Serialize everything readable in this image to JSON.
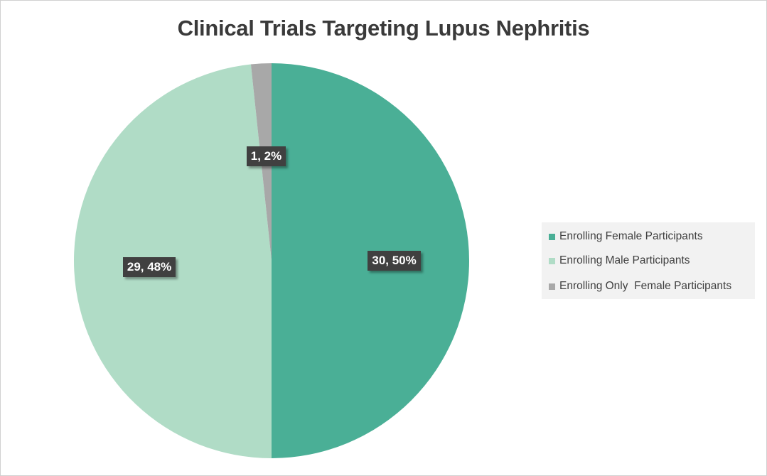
{
  "chart_data": {
    "type": "pie",
    "title": "Clinical Trials Targeting Lupus Nephritis",
    "slices": [
      {
        "label": "Enrolling Female Participants",
        "value": 30,
        "percent": 50,
        "color": "#4aaf96",
        "data_label": "30, 50%"
      },
      {
        "label": "Enrolling Male Participants",
        "value": 29,
        "percent": 48,
        "color": "#b0dcc6",
        "data_label": "29, 48%"
      },
      {
        "label": "Enrolling Only  Female Participants",
        "value": 1,
        "percent": 2,
        "color": "#a8a8a8",
        "data_label": "1, 2%"
      }
    ],
    "legend_position": "right"
  }
}
